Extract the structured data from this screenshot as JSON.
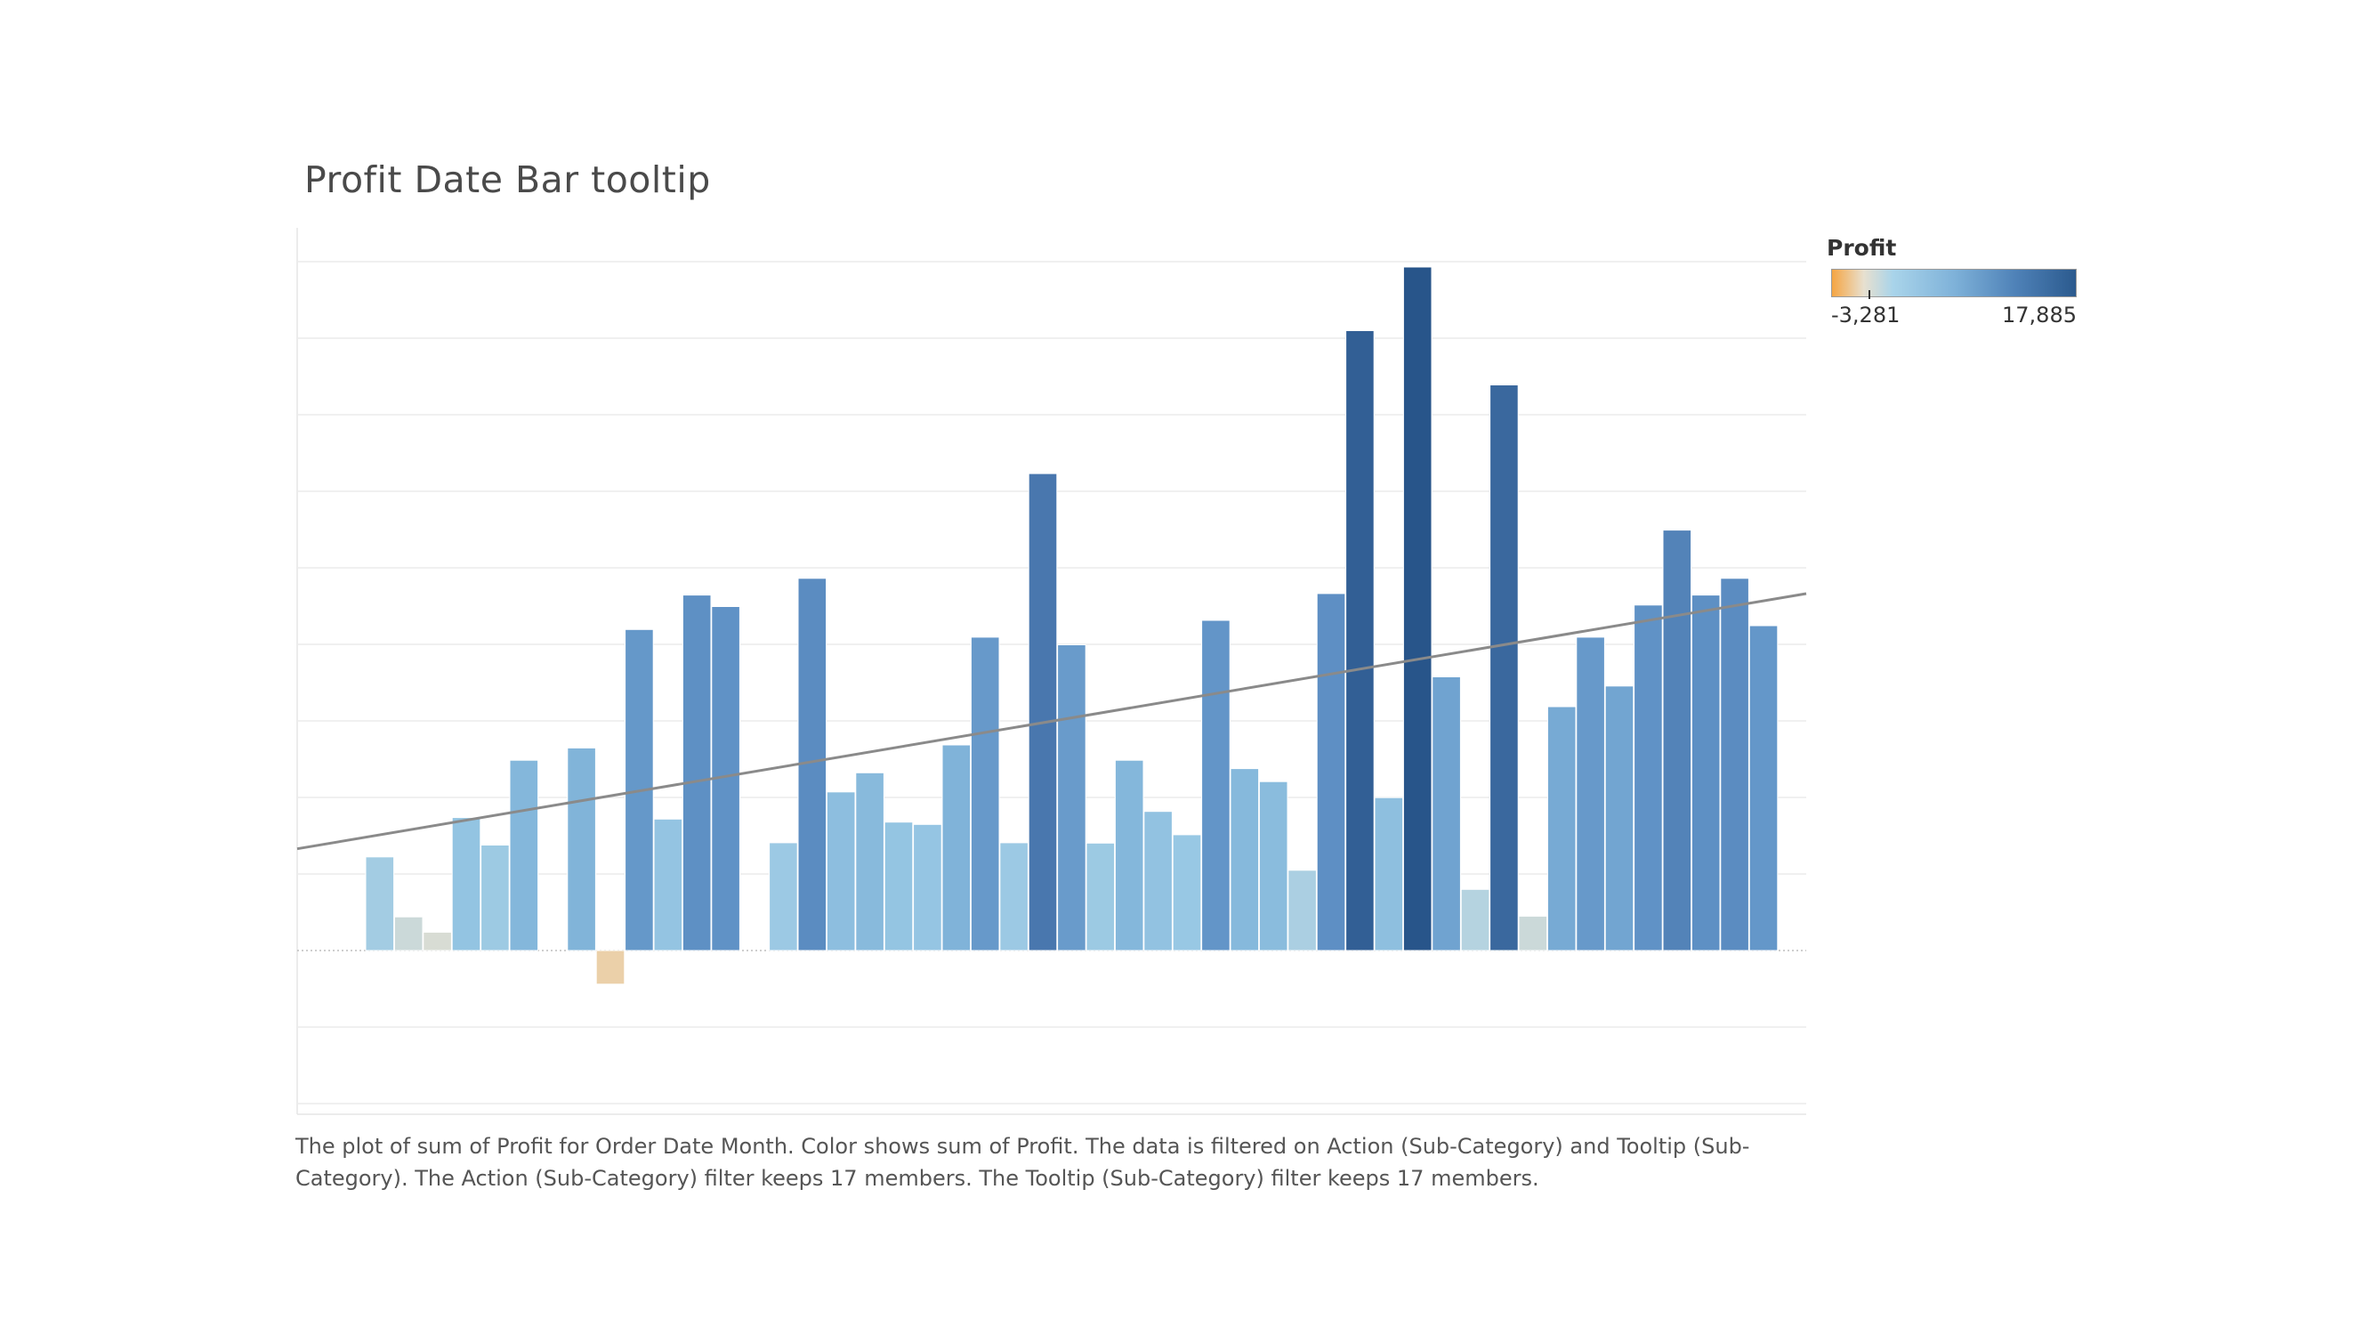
{
  "title": "Profit Date Bar tooltip",
  "legend": {
    "title": "Profit",
    "min_label": "-3,281",
    "max_label": "17,885",
    "colors": [
      "#f5a542",
      "#e8e0cf",
      "#a9d4ea",
      "#7fb2d9",
      "#4f82b8",
      "#2b5a8e"
    ]
  },
  "caption": "The plot of sum of Profit for Order Date Month.  Color shows sum of Profit. The data is filtered on Action (Sub-Category) and Tooltip (Sub-Category). The Action (Sub-Category) filter keeps 17 members. The Tooltip (Sub-Category) filter keeps 17 members.",
  "chart_data": {
    "type": "bar",
    "measure": "sum of Profit",
    "dimension": "Order Date Month",
    "color_range": [
      -3281,
      17885
    ],
    "ylim": [
      -4800,
      20000
    ],
    "grid": true,
    "trend_line": true,
    "values": [
      2450,
      880,
      480,
      3480,
      2760,
      4980,
      null,
      5300,
      -880,
      8400,
      3440,
      9300,
      9000,
      null,
      2820,
      9740,
      4150,
      4650,
      3360,
      3300,
      5380,
      8200,
      2820,
      12480,
      8000,
      2810,
      4980,
      3640,
      3030,
      8640,
      4760,
      4420,
      2100,
      9340,
      16220,
      4000,
      17885,
      7160,
      1600,
      14800,
      900,
      6380,
      8200,
      6920,
      9040,
      11000,
      9300,
      9740,
      8500
    ]
  }
}
